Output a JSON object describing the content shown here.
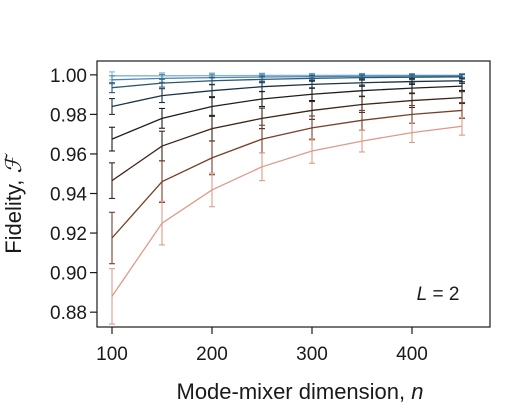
{
  "chart_data": {
    "type": "line",
    "xlabel_text": "Mode-mixer dimension, ",
    "xlabel_var": "n",
    "ylabel_text": "Fidelity, ",
    "ylabel_var": "ℱ",
    "annotation_var": "L",
    "annotation_rest": " = 2",
    "xlim": [
      85,
      478
    ],
    "ylim": [
      0.8725,
      1.007
    ],
    "grid": false,
    "legend": "none",
    "x": [
      100,
      150,
      200,
      250,
      300,
      350,
      400,
      450
    ],
    "x_ticks": [
      100,
      200,
      300,
      400
    ],
    "x_tick_labels": [
      "100",
      "200",
      "300",
      "400"
    ],
    "y_ticks": [
      0.88,
      0.9,
      0.92,
      0.94,
      0.96,
      0.98,
      1.0
    ],
    "y_tick_labels": [
      "0.88",
      "0.90",
      "0.92",
      "0.94",
      "0.96",
      "0.98",
      "1.00"
    ],
    "series": [
      {
        "color": "#7fb3d8",
        "values": [
          0.9995,
          0.9995,
          0.9996,
          0.9997,
          0.9997,
          0.9998,
          0.9998,
          0.9998
        ],
        "errors": [
          0.002,
          0.0015,
          0.0013,
          0.0011,
          0.001,
          0.0009,
          0.0008,
          0.0008
        ]
      },
      {
        "color": "#4a85ad",
        "values": [
          0.9975,
          0.9982,
          0.9986,
          0.9989,
          0.9991,
          0.9993,
          0.9994,
          0.9995
        ],
        "errors": [
          0.002,
          0.002,
          0.0017,
          0.0015,
          0.0013,
          0.0012,
          0.0011,
          0.001
        ]
      },
      {
        "color": "#2e5870",
        "values": [
          0.9935,
          0.9958,
          0.997,
          0.9977,
          0.9982,
          0.9986,
          0.9988,
          0.999
        ],
        "errors": [
          0.0025,
          0.002,
          0.0018,
          0.0017,
          0.0015,
          0.0013,
          0.0012,
          0.0011
        ]
      },
      {
        "color": "#1c3345",
        "values": [
          0.984,
          0.9895,
          0.992,
          0.994,
          0.9952,
          0.996,
          0.9966,
          0.997
        ],
        "errors": [
          0.004,
          0.0035,
          0.003,
          0.0025,
          0.002,
          0.0018,
          0.0015,
          0.0013
        ]
      },
      {
        "color": "#1e1e1e",
        "values": [
          0.9675,
          0.978,
          0.984,
          0.9878,
          0.9902,
          0.992,
          0.9933,
          0.9943
        ],
        "errors": [
          0.006,
          0.005,
          0.0045,
          0.0038,
          0.0032,
          0.0028,
          0.0025,
          0.0022
        ]
      },
      {
        "color": "#3e2418",
        "values": [
          0.9465,
          0.964,
          0.9728,
          0.978,
          0.982,
          0.985,
          0.987,
          0.9885
        ],
        "errors": [
          0.009,
          0.0075,
          0.0062,
          0.0052,
          0.0045,
          0.004,
          0.0035,
          0.003
        ]
      },
      {
        "color": "#7a3f2a",
        "values": [
          0.9175,
          0.946,
          0.958,
          0.9675,
          0.9732,
          0.977,
          0.98,
          0.982
        ],
        "errors": [
          0.013,
          0.0105,
          0.0085,
          0.007,
          0.006,
          0.005,
          0.0045,
          0.004
        ]
      },
      {
        "color": "#de9a88",
        "values": [
          0.888,
          0.925,
          0.9418,
          0.9535,
          0.9615,
          0.9665,
          0.9708,
          0.974
        ],
        "errors": [
          0.014,
          0.011,
          0.0085,
          0.007,
          0.0062,
          0.0055,
          0.005,
          0.0045
        ]
      }
    ]
  }
}
